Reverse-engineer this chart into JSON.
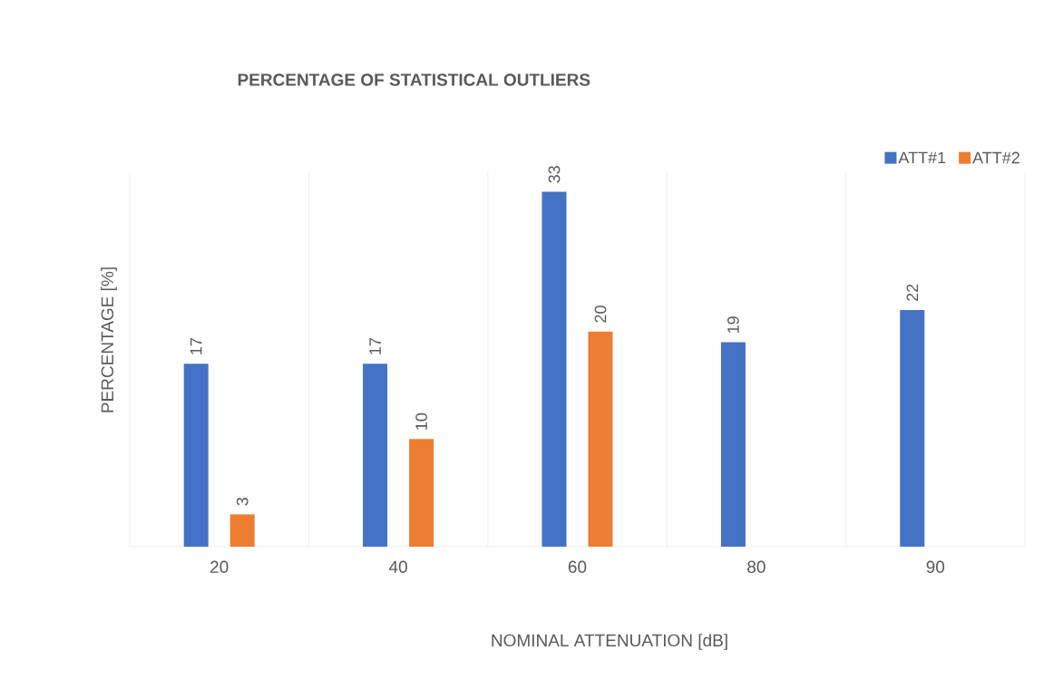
{
  "chart_data": {
    "type": "bar",
    "title": "PERCENTAGE OF STATISTICAL OUTLIERS",
    "xlabel": "NOMINAL ATTENUATION [dB]",
    "ylabel": "PERCENTAGE [%]",
    "categories": [
      "20",
      "40",
      "60",
      "80",
      "90"
    ],
    "series": [
      {
        "name": "ATT#1",
        "color": "#4472c4",
        "values": [
          17,
          17,
          33,
          19,
          22
        ]
      },
      {
        "name": "ATT#2",
        "color": "#ed7d31",
        "values": [
          3,
          10,
          20,
          null,
          null
        ]
      }
    ],
    "data_labels": true,
    "grid": "x",
    "legend": "top right"
  }
}
